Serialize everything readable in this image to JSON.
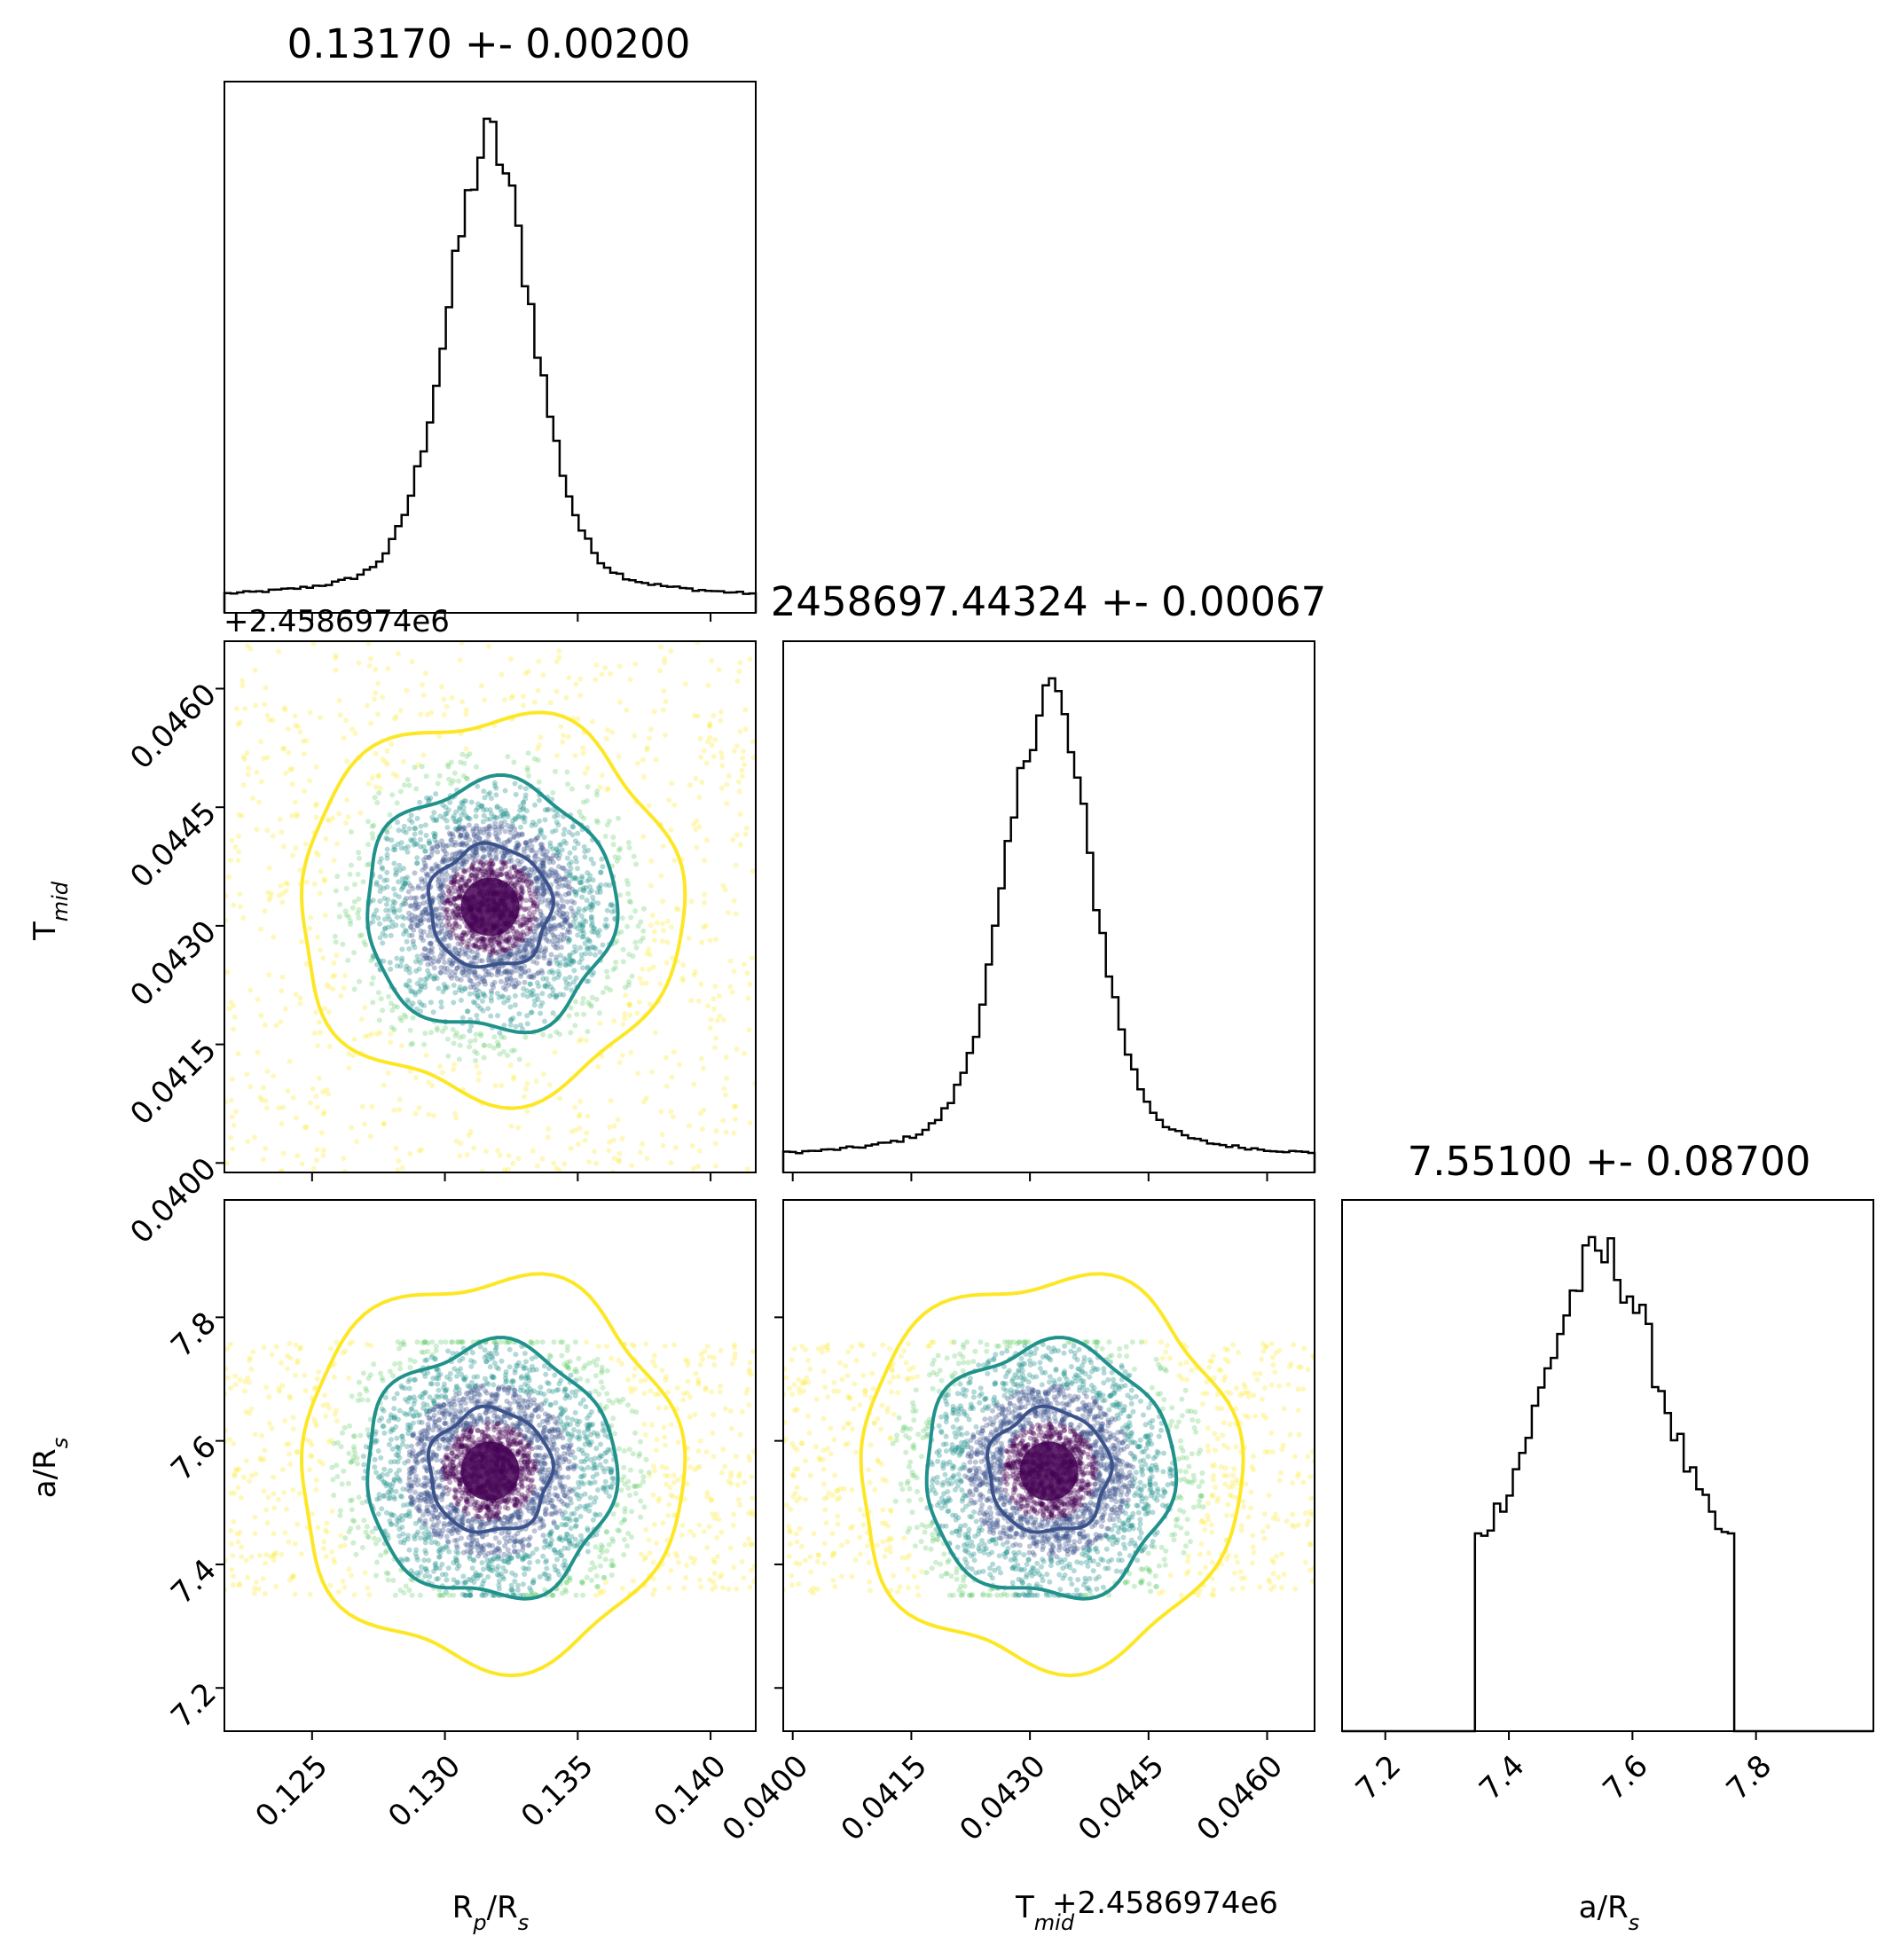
{
  "chart_data": {
    "type": "corner",
    "parameters": [
      {
        "key": "rprs",
        "title": "0.13170 +- 0.00200",
        "median": 0.1317,
        "sigma": 0.002,
        "range": [
          0.1217,
          0.1417
        ],
        "ticks": [
          "0.125",
          "0.130",
          "0.135",
          "0.140"
        ],
        "label_main": "R",
        "label_sub1": "p",
        "label_mid": "/R",
        "label_sub2": "s"
      },
      {
        "key": "tmid",
        "title": "2458697.44324 +- 0.00067",
        "median": 0.04324,
        "sigma": 0.00067,
        "range": [
          0.03988,
          0.0466
        ],
        "ticks": [
          "0.0400",
          "0.0415",
          "0.0430",
          "0.0445",
          "0.0460"
        ],
        "offset": "+2.4586974e6",
        "label_main": "T",
        "label_sub1": "mid",
        "label_offset": "+2.4586974e6"
      },
      {
        "key": "ars",
        "title": "7.55100 +- 0.08700",
        "median": 7.551,
        "sigma": 0.087,
        "range": [
          7.13,
          7.99
        ],
        "ticks": [
          "7.2",
          "7.4",
          "7.6",
          "7.8"
        ],
        "label_main": "a/R",
        "label_sub1": "s"
      }
    ],
    "contour_colors": [
      "#3b528b",
      "#21918c",
      "#fde725"
    ],
    "scatter_colors": [
      "#440154",
      "#3b528b",
      "#21918c",
      "#5ec962",
      "#fde725"
    ],
    "ars_prior_bounds": [
      7.35,
      7.76
    ]
  }
}
